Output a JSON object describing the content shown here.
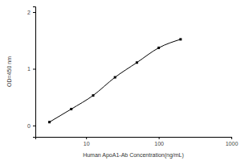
{
  "chart_data": {
    "type": "line",
    "x_label": "Human ApoA1-Ab Concentration(ng/mL)",
    "y_label": "OD=450 nm",
    "x": [
      3.125,
      6.25,
      12.5,
      25,
      50,
      100,
      200
    ],
    "values": [
      0.06,
      0.29,
      0.53,
      0.85,
      1.11,
      1.37,
      1.52
    ],
    "color": "#000000",
    "marker": "square",
    "line_style": "solid",
    "log": "x",
    "xlim": [
      2,
      1000
    ],
    "xticks": [
      10,
      100,
      1000
    ],
    "ylim": [
      -0.2,
      2.1
    ],
    "yticks": [
      0,
      1,
      2
    ],
    "grid": false
  }
}
